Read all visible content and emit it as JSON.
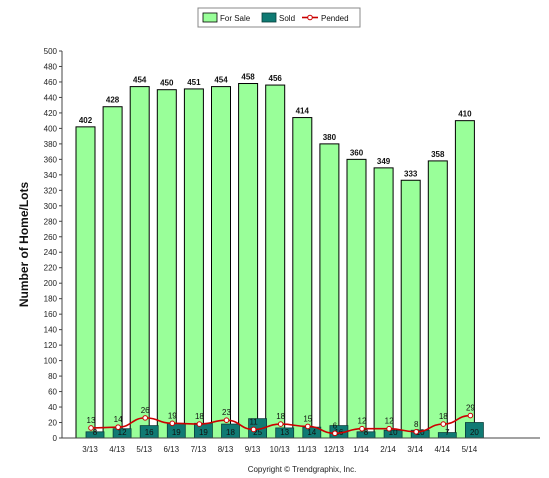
{
  "chart_data": {
    "type": "bar",
    "title": "",
    "ylabel": "Number of Home/Lots",
    "xlabel": "",
    "ylim": [
      0,
      500
    ],
    "ytick_step": 20,
    "grid": false,
    "legend_position": "top-center",
    "categories": [
      "3/13",
      "4/13",
      "5/13",
      "6/13",
      "7/13",
      "8/13",
      "9/13",
      "10/13",
      "11/13",
      "12/13",
      "1/14",
      "2/14",
      "3/14",
      "4/14",
      "5/14"
    ],
    "series": [
      {
        "name": "For Sale",
        "kind": "bar",
        "color": "#99ff99",
        "values": [
          402,
          428,
          454,
          450,
          451,
          454,
          458,
          456,
          414,
          380,
          360,
          349,
          333,
          358,
          410
        ]
      },
      {
        "name": "Sold",
        "kind": "bar",
        "color": "#0f7a73",
        "values": [
          8,
          12,
          16,
          19,
          19,
          18,
          25,
          13,
          14,
          16,
          8,
          10,
          10,
          7,
          20
        ]
      },
      {
        "name": "Pended",
        "kind": "line",
        "color": "#cc0000",
        "values": [
          13,
          14,
          26,
          19,
          18,
          23,
          11,
          18,
          15,
          6,
          12,
          12,
          8,
          18,
          29
        ]
      }
    ]
  },
  "footer": "Copyright © Trendgraphix, Inc."
}
